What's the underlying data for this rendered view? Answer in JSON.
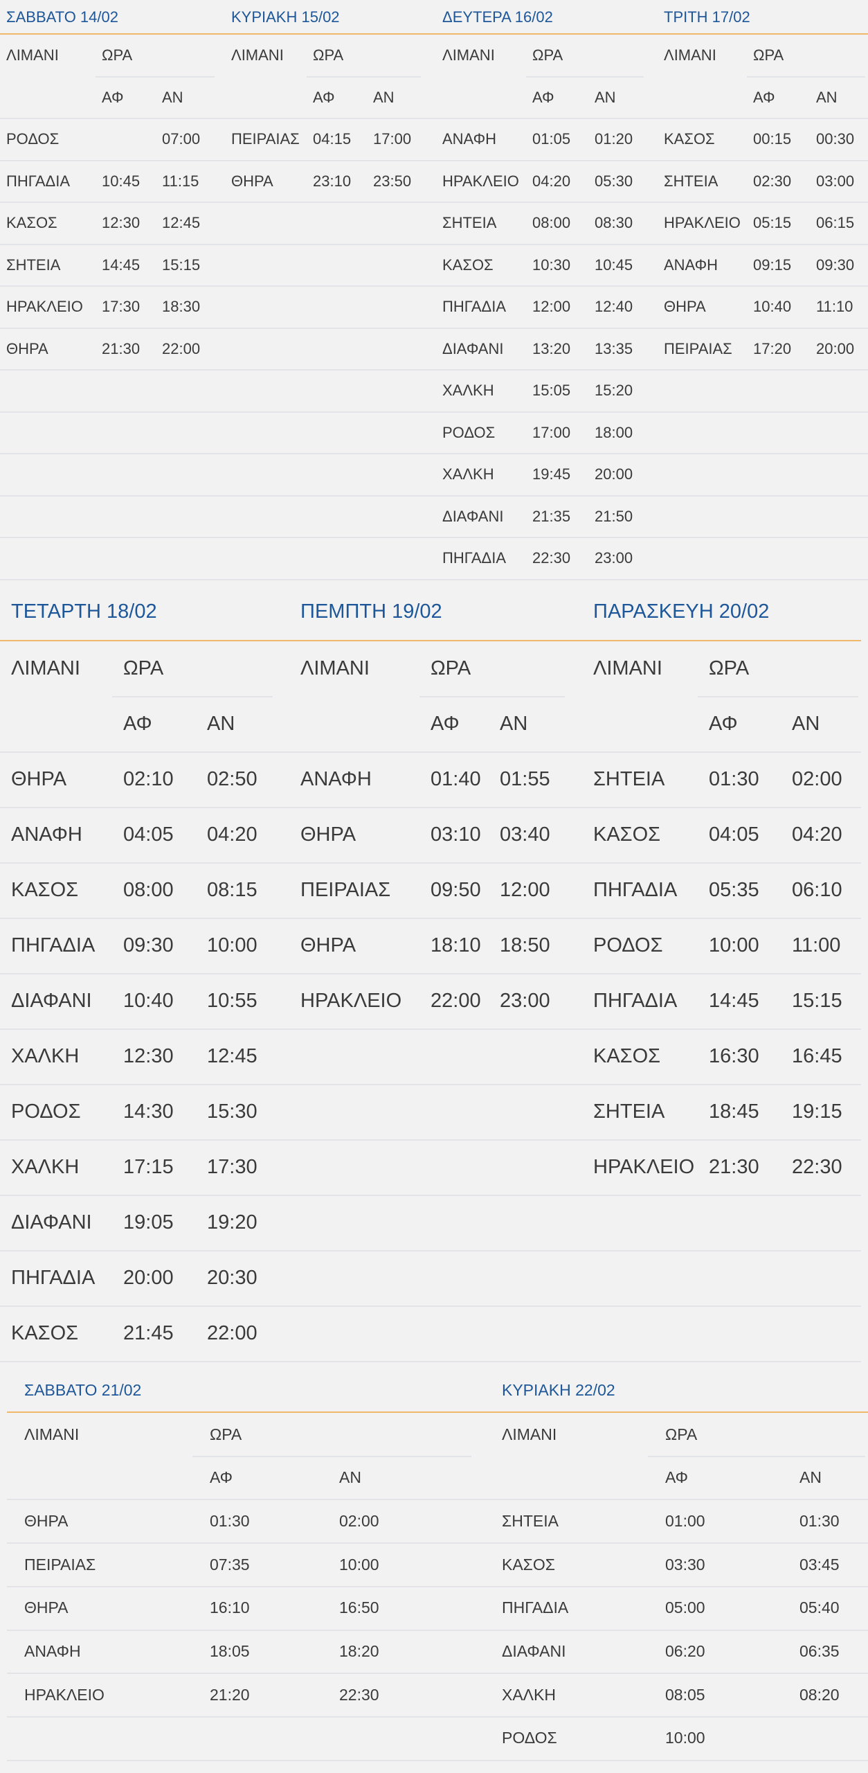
{
  "colors": {
    "title": "#1e5799",
    "accent_rule": "#f0b86a",
    "row_separator": "#e2e4e8",
    "text": "#3a3a3a",
    "background": "#f2f2f2"
  },
  "labels": {
    "port": "ΛΙΜΑΝΙ",
    "time": "ΩΡΑ",
    "arr": "ΑΦ",
    "dep": "ΑΝ"
  },
  "days": [
    {
      "title": "ΣΑΒΒΑΤΟ 14/02",
      "rows": [
        [
          "ΡΟΔΟΣ",
          "",
          "07:00"
        ],
        [
          "ΠΗΓΑΔΙΑ",
          "10:45",
          "11:15"
        ],
        [
          "ΚΑΣΟΣ",
          "12:30",
          "12:45"
        ],
        [
          "ΣΗΤΕΙΑ",
          "14:45",
          "15:15"
        ],
        [
          "ΗΡΑΚΛΕΙΟ",
          "17:30",
          "18:30"
        ],
        [
          "ΘΗΡΑ",
          "21:30",
          "22:00"
        ]
      ]
    },
    {
      "title": "ΚΥΡΙΑΚΗ 15/02",
      "rows": [
        [
          "ΠΕΙΡΑΙΑΣ",
          "04:15",
          "17:00"
        ],
        [
          "ΘΗΡΑ",
          "23:10",
          "23:50"
        ]
      ]
    },
    {
      "title": "ΔΕΥΤΕΡΑ 16/02",
      "rows": [
        [
          "ΑΝΑΦΗ",
          "01:05",
          "01:20"
        ],
        [
          "ΗΡΑΚΛΕΙΟ",
          "04:20",
          "05:30"
        ],
        [
          "ΣΗΤΕΙΑ",
          "08:00",
          "08:30"
        ],
        [
          "ΚΑΣΟΣ",
          "10:30",
          "10:45"
        ],
        [
          "ΠΗΓΑΔΙΑ",
          "12:00",
          "12:40"
        ],
        [
          "ΔΙΑΦΑΝΙ",
          "13:20",
          "13:35"
        ],
        [
          "ΧΑΛΚΗ",
          "15:05",
          "15:20"
        ],
        [
          "ΡΟΔΟΣ",
          "17:00",
          "18:00"
        ],
        [
          "ΧΑΛΚΗ",
          "19:45",
          "20:00"
        ],
        [
          "ΔΙΑΦΑΝΙ",
          "21:35",
          "21:50"
        ],
        [
          "ΠΗΓΑΔΙΑ",
          "22:30",
          "23:00"
        ]
      ]
    },
    {
      "title": "ΤΡΙΤΗ 17/02",
      "rows": [
        [
          "ΚΑΣΟΣ",
          "00:15",
          "00:30"
        ],
        [
          "ΣΗΤΕΙΑ",
          "02:30",
          "03:00"
        ],
        [
          "ΗΡΑΚΛΕΙΟ",
          "05:15",
          "06:15"
        ],
        [
          "ΑΝΑΦΗ",
          "09:15",
          "09:30"
        ],
        [
          "ΘΗΡΑ",
          "10:40",
          "11:10"
        ],
        [
          "ΠΕΙΡΑΙΑΣ",
          "17:20",
          "20:00"
        ]
      ]
    },
    {
      "title": "ΤΕΤΑΡΤΗ 18/02",
      "rows": [
        [
          "ΘΗΡΑ",
          "02:10",
          "02:50"
        ],
        [
          "ΑΝΑΦΗ",
          "04:05",
          "04:20"
        ],
        [
          "ΚΑΣΟΣ",
          "08:00",
          "08:15"
        ],
        [
          "ΠΗΓΑΔΙΑ",
          "09:30",
          "10:00"
        ],
        [
          "ΔΙΑΦΑΝΙ",
          "10:40",
          "10:55"
        ],
        [
          "ΧΑΛΚΗ",
          "12:30",
          "12:45"
        ],
        [
          "ΡΟΔΟΣ",
          "14:30",
          "15:30"
        ],
        [
          "ΧΑΛΚΗ",
          "17:15",
          "17:30"
        ],
        [
          "ΔΙΑΦΑΝΙ",
          "19:05",
          "19:20"
        ],
        [
          "ΠΗΓΑΔΙΑ",
          "20:00",
          "20:30"
        ],
        [
          "ΚΑΣΟΣ",
          "21:45",
          "22:00"
        ]
      ]
    },
    {
      "title": "ΠΕΜΠΤΗ 19/02",
      "rows": [
        [
          "ΑΝΑΦΗ",
          "01:40",
          "01:55"
        ],
        [
          "ΘΗΡΑ",
          "03:10",
          "03:40"
        ],
        [
          "ΠΕΙΡΑΙΑΣ",
          "09:50",
          "12:00"
        ],
        [
          "ΘΗΡΑ",
          "18:10",
          "18:50"
        ],
        [
          "ΗΡΑΚΛΕΙΟ",
          "22:00",
          "23:00"
        ]
      ]
    },
    {
      "title": "ΠΑΡΑΣΚΕΥΗ 20/02",
      "rows": [
        [
          "ΣΗΤΕΙΑ",
          "01:30",
          "02:00"
        ],
        [
          "ΚΑΣΟΣ",
          "04:05",
          "04:20"
        ],
        [
          "ΠΗΓΑΔΙΑ",
          "05:35",
          "06:10"
        ],
        [
          "ΡΟΔΟΣ",
          "10:00",
          "11:00"
        ],
        [
          "ΠΗΓΑΔΙΑ",
          "14:45",
          "15:15"
        ],
        [
          "ΚΑΣΟΣ",
          "16:30",
          "16:45"
        ],
        [
          "ΣΗΤΕΙΑ",
          "18:45",
          "19:15"
        ],
        [
          "ΗΡΑΚΛΕΙΟ",
          "21:30",
          "22:30"
        ]
      ]
    },
    {
      "title": "ΣΑΒΒΑΤΟ 21/02",
      "rows": [
        [
          "ΘΗΡΑ",
          "01:30",
          "02:00"
        ],
        [
          "ΠΕΙΡΑΙΑΣ",
          "07:35",
          "10:00"
        ],
        [
          "ΘΗΡΑ",
          "16:10",
          "16:50"
        ],
        [
          "ΑΝΑΦΗ",
          "18:05",
          "18:20"
        ],
        [
          "ΗΡΑΚΛΕΙΟ",
          "21:20",
          "22:30"
        ]
      ]
    },
    {
      "title": "ΚΥΡΙΑΚΗ 22/02",
      "rows": [
        [
          "ΣΗΤΕΙΑ",
          "01:00",
          "01:30"
        ],
        [
          "ΚΑΣΟΣ",
          "03:30",
          "03:45"
        ],
        [
          "ΠΗΓΑΔΙΑ",
          "05:00",
          "05:40"
        ],
        [
          "ΔΙΑΦΑΝΙ",
          "06:20",
          "06:35"
        ],
        [
          "ΧΑΛΚΗ",
          "08:05",
          "08:20"
        ],
        [
          "ΡΟΔΟΣ",
          "10:00",
          ""
        ]
      ]
    }
  ]
}
